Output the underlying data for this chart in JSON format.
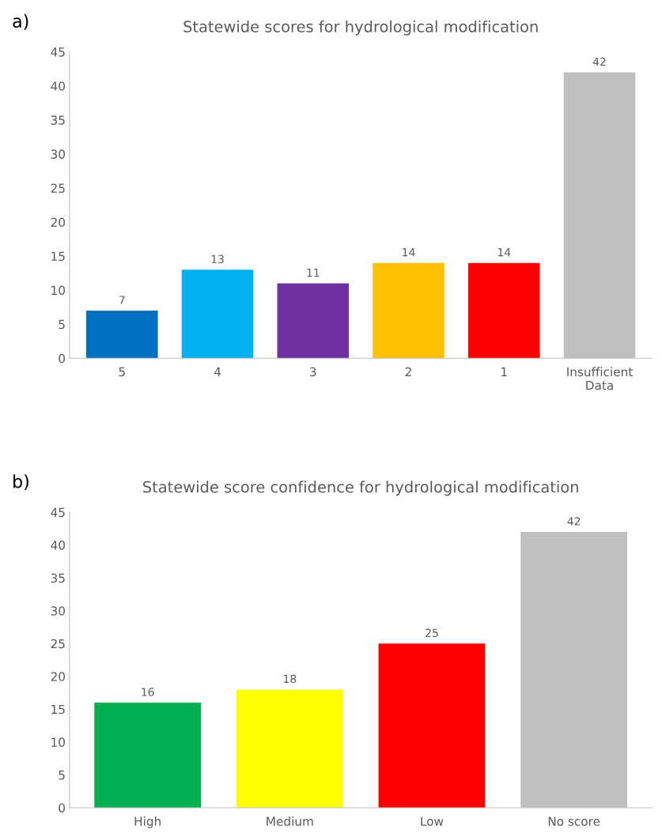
{
  "chart_data": [
    {
      "type": "bar",
      "title": "Statewide scores for hydrological modification",
      "annotations": [
        "a)"
      ],
      "categories": [
        "5",
        "4",
        "3",
        "2",
        "1",
        "Insufficient\nData"
      ],
      "values": [
        7,
        13,
        11,
        14,
        14,
        42
      ],
      "colors": [
        "#0070c0",
        "#00b0f0",
        "#7030a0",
        "#ffc000",
        "#ff0000",
        "#bfbfbf"
      ],
      "ylim": [
        0,
        45
      ],
      "yticks": [
        0,
        5,
        10,
        15,
        20,
        25,
        30,
        35,
        40,
        45
      ],
      "data_labels": true,
      "grid": false,
      "legend": false
    },
    {
      "type": "bar",
      "title": "Statewide score confidence for hydrological modification",
      "annotations": [
        "b)"
      ],
      "categories": [
        "High",
        "Medium",
        "Low",
        "No score"
      ],
      "values": [
        16,
        18,
        25,
        42
      ],
      "colors": [
        "#00b050",
        "#ffff00",
        "#ff0000",
        "#bfbfbf"
      ],
      "ylim": [
        0,
        45
      ],
      "yticks": [
        0,
        5,
        10,
        15,
        20,
        25,
        30,
        35,
        40,
        45
      ],
      "data_labels": true,
      "grid": false,
      "legend": false
    }
  ]
}
